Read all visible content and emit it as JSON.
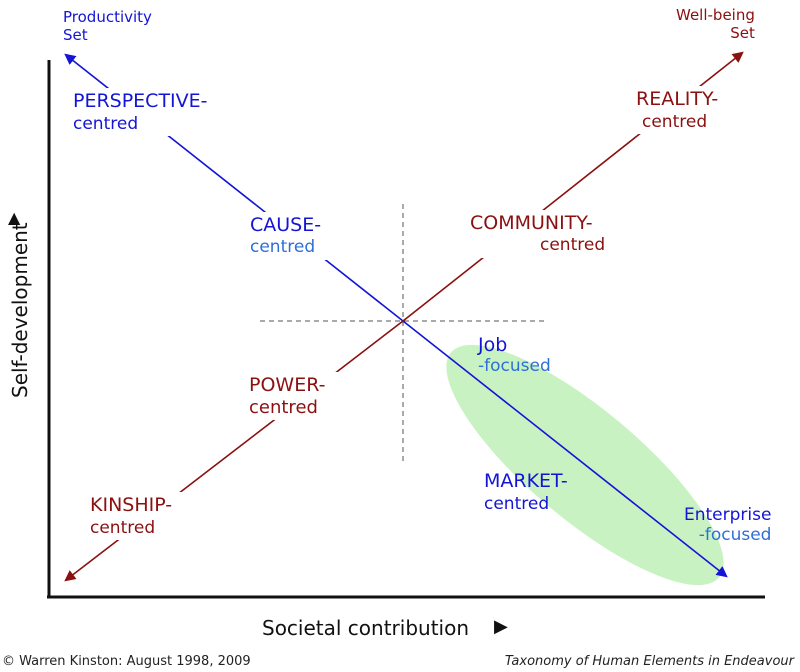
{
  "colors": {
    "blue": "#1414d6",
    "light_blue": "#2d6fd8",
    "dark_red": "#8b1010",
    "ellipse_fill": "#c9f2c3"
  },
  "corner_labels": {
    "productivity_line1": "Productivity",
    "productivity_line2": "Set",
    "wellbeing_line1": "Well-being",
    "wellbeing_line2": "Set"
  },
  "labels": {
    "perspective_main": "PERSPECTIVE-",
    "perspective_sub": "centred",
    "reality_main": "REALITY-",
    "reality_sub": "centred",
    "cause_main": "CAUSE-",
    "cause_sub": "centred",
    "community_main": "COMMUNITY-",
    "community_sub": "centred",
    "job_main": "Job",
    "job_sub": "-focused",
    "power_main": "POWER-",
    "power_sub": "centred",
    "market_main": "MARKET-",
    "market_sub": "centred",
    "kinship_main": "KINSHIP-",
    "kinship_sub": "centred",
    "enterprise_main": "Enterprise",
    "enterprise_sub": "-focused"
  },
  "axes": {
    "y_label": "Self-development",
    "y_arrow": "▲",
    "x_label": "Societal contribution",
    "x_arrow": "▶"
  },
  "footer": {
    "left": "© Warren Kinston: August 1998, 2009",
    "right": "Taxonomy of Human Elements in Endeavour"
  }
}
